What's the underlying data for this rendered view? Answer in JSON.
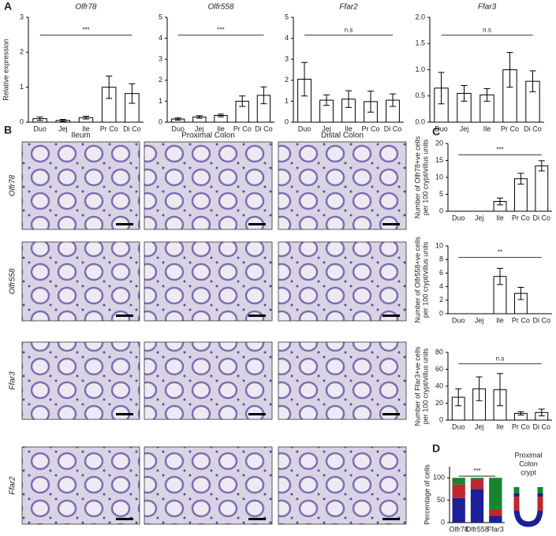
{
  "panel_labels": [
    "A",
    "B",
    "C",
    "D"
  ],
  "micrographs": {
    "columns": [
      "Ileum",
      "Proximal Colon",
      "Distal Colon"
    ],
    "rows": [
      "Olfr78",
      "Olfr558",
      "Ffar3",
      "Ffar2"
    ]
  },
  "schematic_label": [
    "Proximal",
    "Colon",
    "crypt"
  ],
  "chart_data": [
    {
      "type": "bar",
      "title": "Olfr78",
      "ylabel": [
        "Relative expression"
      ],
      "categories": [
        "Duo",
        "Jej",
        "Ile",
        "Pr Co",
        "Di Co"
      ],
      "values": [
        0.1,
        0.05,
        0.13,
        1.0,
        0.82
      ],
      "errors": [
        0.05,
        0.03,
        0.04,
        0.32,
        0.28
      ],
      "color": "#ffffff",
      "ylim": [
        0,
        3
      ],
      "yticks": [
        0,
        1,
        2,
        3
      ],
      "annotation": "***"
    },
    {
      "type": "bar",
      "title": "Olfr558",
      "categories": [
        "Duo",
        "Jej",
        "Ile",
        "Pr Co",
        "Di Co"
      ],
      "values": [
        0.15,
        0.25,
        0.32,
        1.0,
        1.28
      ],
      "errors": [
        0.05,
        0.06,
        0.06,
        0.25,
        0.4
      ],
      "color": "#ffffff",
      "ylim": [
        0,
        5
      ],
      "yticks": [
        0,
        1,
        2,
        3,
        4,
        5
      ],
      "annotation": "***"
    },
    {
      "type": "bar",
      "title": "Ffar2",
      "categories": [
        "Duo",
        "Jej",
        "Ile",
        "Pr Co",
        "Di Co"
      ],
      "values": [
        2.05,
        1.05,
        1.1,
        0.98,
        1.05
      ],
      "errors": [
        0.8,
        0.25,
        0.4,
        0.5,
        0.3
      ],
      "color": "#ffffff",
      "ylim": [
        0,
        5
      ],
      "yticks": [
        0,
        1,
        2,
        3,
        4,
        5
      ],
      "annotation": "n.s"
    },
    {
      "type": "bar",
      "title": "Ffar3",
      "categories": [
        "Duo",
        "Jej",
        "Ile",
        "Pr Co",
        "Di Co"
      ],
      "values": [
        0.65,
        0.55,
        0.52,
        1.0,
        0.78
      ],
      "errors": [
        0.3,
        0.15,
        0.12,
        0.33,
        0.2
      ],
      "color": "#ffffff",
      "ylim": [
        0,
        2
      ],
      "yticks": [
        {
          "value": 0,
          "label": "0.0"
        },
        {
          "value": 0.5,
          "label": "0.5"
        },
        {
          "value": 1,
          "label": "1.0"
        },
        {
          "value": 1.5,
          "label": "1.5"
        },
        {
          "value": 2,
          "label": "2.0"
        }
      ],
      "annotation": "n.s"
    },
    {
      "type": "bar",
      "ylabel": [
        "Number of Olfr78+ve cells",
        "per 100 crypt/villus units"
      ],
      "categories": [
        "Duo",
        "Jej",
        "Ile",
        "Pr Co",
        "Di Co"
      ],
      "values": [
        0,
        0,
        2.9,
        9.6,
        13.4
      ],
      "errors": [
        0,
        0,
        1.0,
        1.6,
        1.5
      ],
      "color": "#ffffff",
      "ylim": [
        0,
        20
      ],
      "yticks": [
        0,
        5,
        10,
        15,
        20
      ],
      "annotation": "***"
    },
    {
      "type": "bar",
      "ylabel": [
        "Number of Olfr558+ve cells",
        "per 100 crypt/villus units"
      ],
      "categories": [
        "Duo",
        "Jej",
        "Ile",
        "Pr Co",
        "Di Co"
      ],
      "values": [
        0,
        0,
        5.5,
        3.0,
        0
      ],
      "errors": [
        0,
        0,
        1.2,
        0.9,
        0
      ],
      "color": "#ffffff",
      "ylim": [
        0,
        10
      ],
      "yticks": [
        0,
        2,
        4,
        6,
        8,
        10
      ],
      "annotation": "**"
    },
    {
      "type": "bar",
      "ylabel": [
        "Number of Ffar3+ve cells",
        "per 100 crypt/villus units"
      ],
      "categories": [
        "Duo",
        "Jej",
        "Ile",
        "Pr Co",
        "Di Co"
      ],
      "values": [
        27,
        37,
        36,
        8,
        9
      ],
      "errors": [
        10,
        14,
        19,
        2,
        4
      ],
      "color": "#ffffff",
      "ylim": [
        0,
        80
      ],
      "yticks": [
        0,
        20,
        40,
        60,
        80
      ],
      "annotation": "n.s"
    },
    {
      "type": "stacked_bar",
      "ylabel": [
        "Percentage of cells"
      ],
      "categories": [
        "Olfr78",
        "Olfr558",
        "Ffar3"
      ],
      "series": [
        {
          "color": "#1c1f96",
          "values": [
            55,
            75,
            15
          ]
        },
        {
          "color": "#c0272d",
          "values": [
            30,
            20,
            15
          ]
        },
        {
          "color": "#17852f",
          "values": [
            15,
            5,
            70
          ]
        }
      ],
      "ylim": [
        0,
        125
      ],
      "yticks": [
        0,
        50,
        100
      ],
      "annotation": "***"
    }
  ]
}
